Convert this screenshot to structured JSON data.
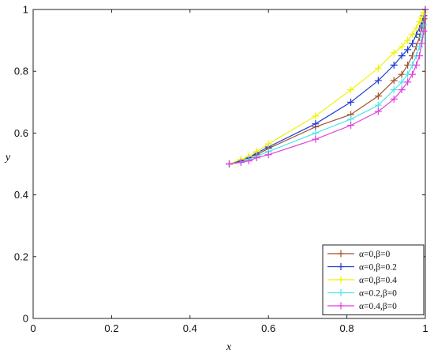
{
  "chart_data": {
    "type": "line",
    "title": "",
    "xlabel": "x",
    "ylabel": "y",
    "xlim": [
      0,
      1
    ],
    "ylim": [
      0,
      1
    ],
    "x_ticks": [
      "0",
      "0.2",
      "0.4",
      "0.6",
      "0.8",
      "1"
    ],
    "y_ticks": [
      "0",
      "0.2",
      "0.4",
      "0.6",
      "0.8",
      "1"
    ],
    "grid": false,
    "legend_position": "bottom-right",
    "series": [
      {
        "name": "α=0,β=0",
        "color": "#a0522d",
        "points": [
          [
            0.5,
            0.5
          ],
          [
            0.53,
            0.51
          ],
          [
            0.55,
            0.52
          ],
          [
            0.57,
            0.53
          ],
          [
            0.6,
            0.55
          ],
          [
            0.72,
            0.62
          ],
          [
            0.81,
            0.66
          ],
          [
            0.88,
            0.72
          ],
          [
            0.92,
            0.77
          ],
          [
            0.94,
            0.79
          ],
          [
            0.955,
            0.82
          ],
          [
            0.967,
            0.85
          ],
          [
            0.977,
            0.88
          ],
          [
            0.985,
            0.91
          ],
          [
            0.991,
            0.94
          ],
          [
            0.996,
            0.97
          ],
          [
            1.0,
            1.0
          ]
        ]
      },
      {
        "name": "α=0,β=0.2",
        "color": "#1f3cd1",
        "points": [
          [
            0.5,
            0.5
          ],
          [
            0.53,
            0.51
          ],
          [
            0.55,
            0.52
          ],
          [
            0.57,
            0.535
          ],
          [
            0.6,
            0.555
          ],
          [
            0.72,
            0.63
          ],
          [
            0.81,
            0.7
          ],
          [
            0.88,
            0.77
          ],
          [
            0.92,
            0.82
          ],
          [
            0.94,
            0.85
          ],
          [
            0.955,
            0.87
          ],
          [
            0.967,
            0.89
          ],
          [
            0.977,
            0.92
          ],
          [
            0.985,
            0.94
          ],
          [
            0.991,
            0.96
          ],
          [
            0.996,
            0.98
          ],
          [
            1.0,
            1.0
          ]
        ]
      },
      {
        "name": "α=0,β=0.4",
        "color": "#f2f200",
        "points": [
          [
            0.5,
            0.5
          ],
          [
            0.53,
            0.515
          ],
          [
            0.55,
            0.525
          ],
          [
            0.57,
            0.54
          ],
          [
            0.6,
            0.565
          ],
          [
            0.72,
            0.655
          ],
          [
            0.81,
            0.74
          ],
          [
            0.88,
            0.81
          ],
          [
            0.92,
            0.86
          ],
          [
            0.94,
            0.88
          ],
          [
            0.955,
            0.9
          ],
          [
            0.967,
            0.92
          ],
          [
            0.977,
            0.94
          ],
          [
            0.985,
            0.96
          ],
          [
            0.991,
            0.975
          ],
          [
            0.996,
            0.99
          ],
          [
            1.0,
            1.0
          ]
        ]
      },
      {
        "name": "α=0.2,β=0",
        "color": "#4fe6e6",
        "points": [
          [
            0.5,
            0.5
          ],
          [
            0.53,
            0.505
          ],
          [
            0.55,
            0.515
          ],
          [
            0.57,
            0.525
          ],
          [
            0.6,
            0.54
          ],
          [
            0.72,
            0.6
          ],
          [
            0.81,
            0.645
          ],
          [
            0.88,
            0.69
          ],
          [
            0.92,
            0.74
          ],
          [
            0.94,
            0.765
          ],
          [
            0.955,
            0.79
          ],
          [
            0.967,
            0.82
          ],
          [
            0.977,
            0.85
          ],
          [
            0.985,
            0.88
          ],
          [
            0.991,
            0.91
          ],
          [
            0.996,
            0.95
          ],
          [
            1.0,
            1.0
          ]
        ]
      },
      {
        "name": "α=0.4,β=0",
        "color": "#e040e0",
        "points": [
          [
            0.5,
            0.5
          ],
          [
            0.53,
            0.505
          ],
          [
            0.55,
            0.51
          ],
          [
            0.57,
            0.52
          ],
          [
            0.6,
            0.53
          ],
          [
            0.72,
            0.58
          ],
          [
            0.81,
            0.625
          ],
          [
            0.88,
            0.67
          ],
          [
            0.92,
            0.71
          ],
          [
            0.94,
            0.74
          ],
          [
            0.955,
            0.765
          ],
          [
            0.967,
            0.79
          ],
          [
            0.977,
            0.82
          ],
          [
            0.985,
            0.85
          ],
          [
            0.991,
            0.89
          ],
          [
            0.996,
            0.93
          ],
          [
            1.0,
            1.0
          ]
        ]
      }
    ]
  }
}
